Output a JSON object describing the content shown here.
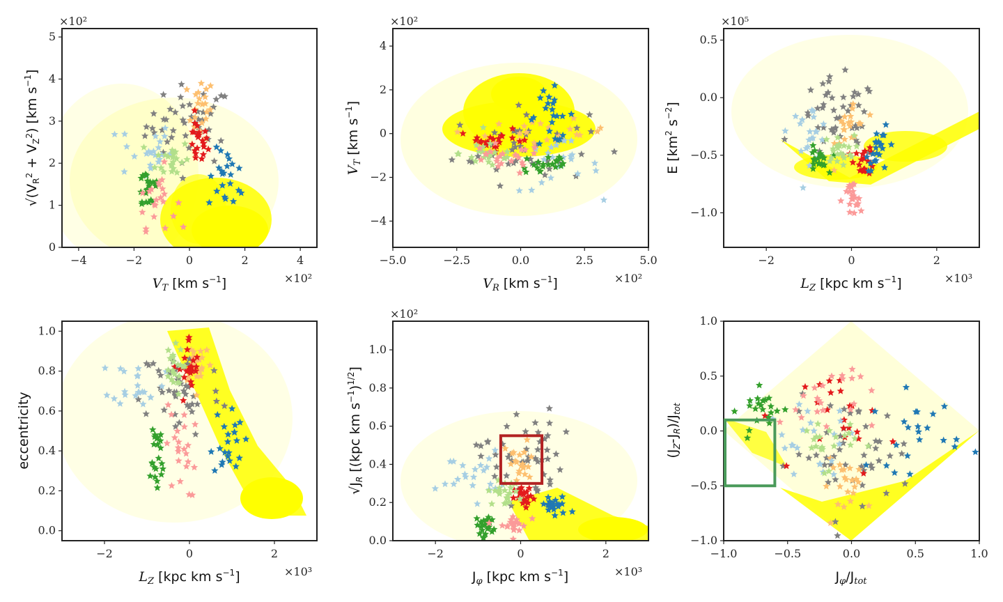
{
  "colors": {
    "background": "#ffff00",
    "palette": [
      "#1f78b4",
      "#a6cee3",
      "#33a02c",
      "#b2df8a",
      "#fb9a99",
      "#e31a1c",
      "#fdbf6f",
      "#808080"
    ],
    "box_red": "#b22222",
    "box_green": "#4a9a5a"
  },
  "chart_data": [
    {
      "type": "scatter",
      "xlabel": "V_T [km s^-1]",
      "ylabel": "sqrt(V_R^2 + V_Z^2) [km s^-1]",
      "xlim": [
        -4.6,
        4.6
      ],
      "ylim": [
        0,
        5.2
      ],
      "xticks": [
        -4,
        -2,
        0,
        2,
        4
      ],
      "yticks": [
        0,
        1,
        2,
        3,
        4,
        5
      ],
      "x_tick_labels": [
        "−4",
        "−2",
        "0",
        "2",
        "4"
      ],
      "y_tick_labels": [
        "0",
        "1",
        "2",
        "3",
        "4",
        "5"
      ],
      "x_multiplier": "×10²",
      "y_multiplier": "×10²",
      "background_series": "field stars",
      "groups": [
        {
          "color": "#808080",
          "cx": 0.0,
          "cy": 2.9,
          "sx": 1.3,
          "sy": 0.8
        },
        {
          "color": "#fdbf6f",
          "cx": 0.4,
          "cy": 3.3,
          "sx": 0.4,
          "sy": 0.6
        },
        {
          "color": "#e31a1c",
          "cx": 0.3,
          "cy": 2.5,
          "sx": 0.3,
          "sy": 0.5
        },
        {
          "color": "#1f78b4",
          "cx": 1.4,
          "cy": 1.6,
          "sx": 0.6,
          "sy": 0.6
        },
        {
          "color": "#a6cee3",
          "cx": -1.6,
          "cy": 2.3,
          "sx": 0.8,
          "sy": 0.6
        },
        {
          "color": "#33a02c",
          "cx": -1.5,
          "cy": 1.4,
          "sx": 0.4,
          "sy": 0.5
        },
        {
          "color": "#b2df8a",
          "cx": -0.6,
          "cy": 2.1,
          "sx": 0.5,
          "sy": 0.4
        },
        {
          "color": "#fb9a99",
          "cx": -1.2,
          "cy": 1.2,
          "sx": 0.6,
          "sy": 0.6
        }
      ]
    },
    {
      "type": "scatter",
      "xlabel": "V_R [km s^-1]",
      "ylabel": "V_T [km s^-1]",
      "xlim": [
        -5.0,
        5.0
      ],
      "ylim": [
        -5.2,
        4.8
      ],
      "xticks": [
        -5.0,
        -2.5,
        0.0,
        2.5,
        5.0
      ],
      "yticks": [
        -4,
        -2,
        0,
        2,
        4
      ],
      "x_tick_labels": [
        "−5.0",
        "−2.5",
        "0.0",
        "2.5",
        "5.0"
      ],
      "y_tick_labels": [
        "−4",
        "−2",
        "0",
        "2",
        "4"
      ],
      "x_multiplier": "×10²",
      "y_multiplier": "×10²",
      "background_series": "field stars",
      "groups": [
        {
          "color": "#808080",
          "cx": 0.0,
          "cy": -0.6,
          "sx": 2.2,
          "sy": 1.4
        },
        {
          "color": "#fdbf6f",
          "cx": 1.0,
          "cy": 0.0,
          "sx": 2.0,
          "sy": 0.5
        },
        {
          "color": "#e31a1c",
          "cx": -1.0,
          "cy": -0.3,
          "sx": 1.2,
          "sy": 0.4
        },
        {
          "color": "#1f78b4",
          "cx": 1.2,
          "cy": 0.8,
          "sx": 0.8,
          "sy": 1.0
        },
        {
          "color": "#a6cee3",
          "cx": 1.5,
          "cy": -1.5,
          "sx": 1.3,
          "sy": 1.0
        },
        {
          "color": "#33a02c",
          "cx": 1.0,
          "cy": -1.4,
          "sx": 0.9,
          "sy": 0.5
        },
        {
          "color": "#b2df8a",
          "cx": -1.2,
          "cy": -0.9,
          "sx": 1.0,
          "sy": 0.6
        },
        {
          "color": "#fb9a99",
          "cx": -0.8,
          "cy": -1.2,
          "sx": 1.4,
          "sy": 0.6
        }
      ]
    },
    {
      "type": "scatter",
      "xlabel": "L_Z [kpc km s^-1]",
      "ylabel": "E [km^2 s^-2]",
      "xlim": [
        -3.0,
        3.0
      ],
      "ylim": [
        -1.3,
        0.6
      ],
      "xticks": [
        -2,
        0,
        2
      ],
      "yticks": [
        -1.0,
        -0.5,
        0.0,
        0.5
      ],
      "x_tick_labels": [
        "−2",
        "0",
        "2"
      ],
      "y_tick_labels": [
        "−1.0",
        "−0.5",
        "0.0",
        "0.5"
      ],
      "x_multiplier": "×10³",
      "y_multiplier": "×10⁵",
      "background_series": "field stars",
      "groups": [
        {
          "color": "#808080",
          "cx": -0.3,
          "cy": -0.2,
          "sx": 0.8,
          "sy": 0.3
        },
        {
          "color": "#fdbf6f",
          "cx": 0.0,
          "cy": -0.25,
          "sx": 0.3,
          "sy": 0.25
        },
        {
          "color": "#e31a1c",
          "cx": 0.3,
          "cy": -0.55,
          "sx": 0.2,
          "sy": 0.1
        },
        {
          "color": "#1f78b4",
          "cx": 0.7,
          "cy": -0.45,
          "sx": 0.3,
          "sy": 0.15
        },
        {
          "color": "#a6cee3",
          "cx": -1.0,
          "cy": -0.3,
          "sx": 0.4,
          "sy": 0.2
        },
        {
          "color": "#33a02c",
          "cx": -0.8,
          "cy": -0.55,
          "sx": 0.2,
          "sy": 0.1
        },
        {
          "color": "#b2df8a",
          "cx": -0.3,
          "cy": -0.45,
          "sx": 0.3,
          "sy": 0.1
        },
        {
          "color": "#fb9a99",
          "cx": 0.0,
          "cy": -0.9,
          "sx": 0.2,
          "sy": 0.15
        }
      ]
    },
    {
      "type": "scatter",
      "xlabel": "L_Z [kpc km s^-1]",
      "ylabel": "eccentricity",
      "xlim": [
        -3.0,
        3.0
      ],
      "ylim": [
        -0.05,
        1.05
      ],
      "xticks": [
        -2,
        0,
        2
      ],
      "yticks": [
        0.0,
        0.2,
        0.4,
        0.6,
        0.8,
        1.0
      ],
      "x_tick_labels": [
        "−2",
        "0",
        "2"
      ],
      "y_tick_labels": [
        "0.0",
        "0.2",
        "0.4",
        "0.6",
        "0.8",
        "1.0"
      ],
      "x_multiplier": "×10³",
      "background_series": "field stars",
      "groups": [
        {
          "color": "#808080",
          "cx": -0.2,
          "cy": 0.7,
          "sx": 0.8,
          "sy": 0.2
        },
        {
          "color": "#fdbf6f",
          "cx": 0.2,
          "cy": 0.85,
          "sx": 0.3,
          "sy": 0.1
        },
        {
          "color": "#e31a1c",
          "cx": 0.0,
          "cy": 0.8,
          "sx": 0.2,
          "sy": 0.15
        },
        {
          "color": "#1f78b4",
          "cx": 0.9,
          "cy": 0.45,
          "sx": 0.3,
          "sy": 0.15
        },
        {
          "color": "#a6cee3",
          "cx": -1.2,
          "cy": 0.75,
          "sx": 0.5,
          "sy": 0.1
        },
        {
          "color": "#33a02c",
          "cx": -0.8,
          "cy": 0.35,
          "sx": 0.2,
          "sy": 0.2
        },
        {
          "color": "#b2df8a",
          "cx": -0.4,
          "cy": 0.8,
          "sx": 0.2,
          "sy": 0.1
        },
        {
          "color": "#fb9a99",
          "cx": -0.2,
          "cy": 0.4,
          "sx": 0.3,
          "sy": 0.2
        }
      ]
    },
    {
      "type": "scatter",
      "xlabel": "J_φ [kpc km s^-1]",
      "ylabel": "sqrt(J_R) [(kpc km s^-1)^1/2]",
      "xlim": [
        -3.0,
        3.0
      ],
      "ylim": [
        0.0,
        1.15
      ],
      "xticks": [
        -2,
        0,
        2
      ],
      "yticks": [
        0.0,
        0.2,
        0.4,
        0.6,
        0.8,
        1.0
      ],
      "x_tick_labels": [
        "−2",
        "0",
        "2"
      ],
      "y_tick_labels": [
        "0.0",
        "0.2",
        "0.4",
        "0.6",
        "0.8",
        "1.0"
      ],
      "x_multiplier": "×10³",
      "y_multiplier": "×10²",
      "background_series": "field stars",
      "selection_box": {
        "color": "#b22222",
        "x": [
          -0.5,
          0.5
        ],
        "y": [
          0.3,
          0.55
        ]
      },
      "groups": [
        {
          "color": "#808080",
          "cx": 0.0,
          "cy": 0.45,
          "sx": 0.8,
          "sy": 0.2
        },
        {
          "color": "#fdbf6f",
          "cx": 0.0,
          "cy": 0.4,
          "sx": 0.3,
          "sy": 0.1
        },
        {
          "color": "#e31a1c",
          "cx": 0.1,
          "cy": 0.22,
          "sx": 0.2,
          "sy": 0.05
        },
        {
          "color": "#1f78b4",
          "cx": 0.8,
          "cy": 0.18,
          "sx": 0.3,
          "sy": 0.05
        },
        {
          "color": "#a6cee3",
          "cx": -1.2,
          "cy": 0.35,
          "sx": 0.6,
          "sy": 0.1
        },
        {
          "color": "#33a02c",
          "cx": -0.8,
          "cy": 0.08,
          "sx": 0.2,
          "sy": 0.05
        },
        {
          "color": "#b2df8a",
          "cx": -0.4,
          "cy": 0.25,
          "sx": 0.3,
          "sy": 0.05
        },
        {
          "color": "#fb9a99",
          "cx": -0.2,
          "cy": 0.08,
          "sx": 0.3,
          "sy": 0.05
        }
      ]
    },
    {
      "type": "scatter",
      "xlabel": "J_φ/J_tot",
      "ylabel": "(J_Z-J_R)/J_tot",
      "xlim": [
        -1.0,
        1.0
      ],
      "ylim": [
        -1.0,
        1.0
      ],
      "xticks": [
        -1.0,
        -0.5,
        0.0,
        0.5,
        1.0
      ],
      "yticks": [
        -1.0,
        -0.5,
        0.0,
        0.5,
        1.0
      ],
      "x_tick_labels": [
        "−1.0",
        "−0.5",
        "0.0",
        "0.5",
        "1.0"
      ],
      "y_tick_labels": [
        "−1.0",
        "−0.5",
        "0.0",
        "0.5",
        "1.0"
      ],
      "background_series": "field stars",
      "selection_box": {
        "color": "#4a9a5a",
        "x": [
          -1.0,
          -0.6
        ],
        "y": [
          -0.5,
          0.1
        ]
      },
      "groups": [
        {
          "color": "#808080",
          "cx": 0.0,
          "cy": -0.2,
          "sx": 0.4,
          "sy": 0.4
        },
        {
          "color": "#fdbf6f",
          "cx": 0.0,
          "cy": -0.5,
          "sx": 0.2,
          "sy": 0.2
        },
        {
          "color": "#e31a1c",
          "cx": 0.0,
          "cy": 0.1,
          "sx": 0.3,
          "sy": 0.4
        },
        {
          "color": "#1f78b4",
          "cx": 0.5,
          "cy": 0.0,
          "sx": 0.3,
          "sy": 0.3
        },
        {
          "color": "#a6cee3",
          "cx": -0.3,
          "cy": -0.1,
          "sx": 0.3,
          "sy": 0.3
        },
        {
          "color": "#33a02c",
          "cx": -0.7,
          "cy": 0.2,
          "sx": 0.15,
          "sy": 0.15
        },
        {
          "color": "#b2df8a",
          "cx": -0.2,
          "cy": -0.1,
          "sx": 0.2,
          "sy": 0.2
        },
        {
          "color": "#fb9a99",
          "cx": -0.2,
          "cy": 0.3,
          "sx": 0.3,
          "sy": 0.3
        }
      ]
    }
  ]
}
